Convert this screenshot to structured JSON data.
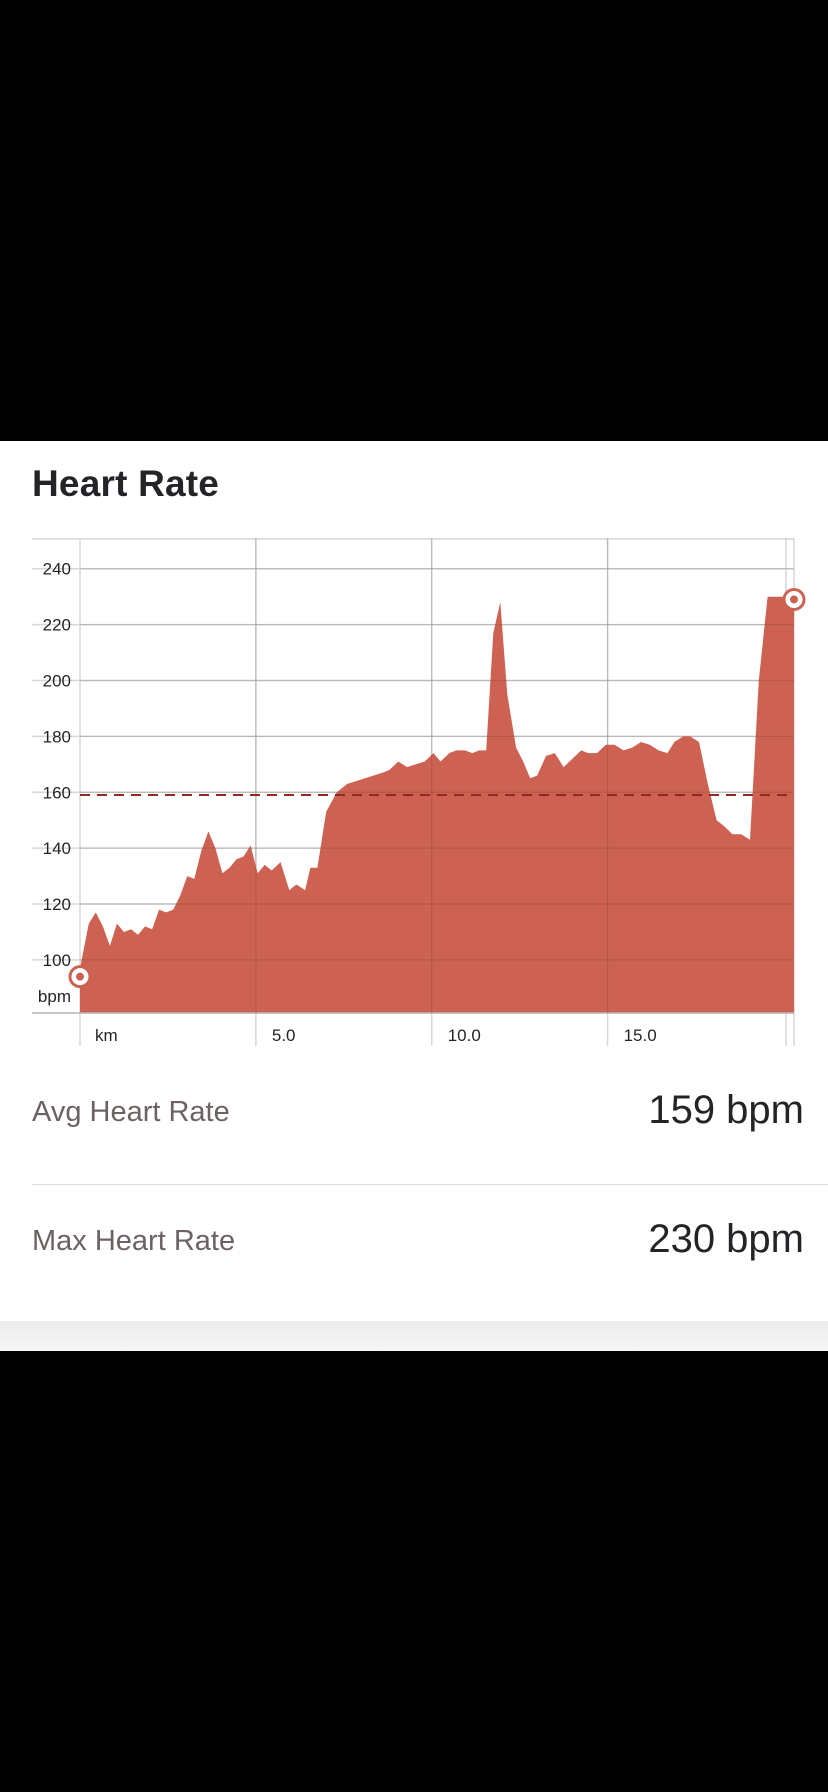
{
  "title": "Heart Rate",
  "colors": {
    "fill": "#ce6252",
    "average_line": "#8e2a22",
    "grid": "#d7d7d7",
    "marker": "#ce6252"
  },
  "stats": {
    "avg_label": "Avg Heart Rate",
    "avg_value": "159 bpm",
    "max_label": "Max Heart Rate",
    "max_value": "230 bpm"
  },
  "chart_data": {
    "type": "area",
    "title": "Heart Rate",
    "xlabel": "km",
    "ylabel": "bpm",
    "xlim": [
      0,
      20.3
    ],
    "ylim": [
      81,
      251
    ],
    "x_ticks": [
      5.0,
      10.0,
      15.0
    ],
    "x_tick_labels": [
      "5.0",
      "10.0",
      "15.0"
    ],
    "y_ticks": [
      100,
      120,
      140,
      160,
      180,
      200,
      220,
      240
    ],
    "y_tick_labels": [
      "100",
      "120",
      "140",
      "160",
      "180",
      "200",
      "220",
      "240"
    ],
    "grid": true,
    "average": 159,
    "markers": [
      {
        "name": "start",
        "x": 0.0,
        "y": 94
      },
      {
        "name": "end",
        "x": 20.3,
        "y": 229
      }
    ],
    "series": [
      {
        "x": [
          0.0,
          0.25,
          0.45,
          0.65,
          0.85,
          1.05,
          1.25,
          1.45,
          1.65,
          1.85,
          2.05,
          2.25,
          2.45,
          2.65,
          2.85,
          3.05,
          3.25,
          3.45,
          3.65,
          3.85,
          4.05,
          4.25,
          4.45,
          4.65,
          4.85,
          5.05,
          5.25,
          5.45,
          5.7,
          5.95,
          6.15,
          6.4,
          6.55,
          6.75,
          7.0,
          7.3,
          7.6,
          7.85,
          8.1,
          8.35,
          8.6,
          8.8,
          9.05,
          9.3,
          9.55,
          9.8,
          10.05,
          10.25,
          10.5,
          10.7,
          10.95,
          11.15,
          11.35,
          11.55,
          11.75,
          11.95,
          12.15,
          12.4,
          12.6,
          12.8,
          13.0,
          13.25,
          13.5,
          13.75,
          14.0,
          14.25,
          14.45,
          14.7,
          14.95,
          15.2,
          15.45,
          15.7,
          15.95,
          16.2,
          16.45,
          16.7,
          16.9,
          17.15,
          17.35,
          17.6,
          17.85,
          18.1,
          18.3,
          18.55,
          18.8,
          19.05,
          19.3,
          19.55,
          19.75,
          20.05,
          20.3
        ],
        "values": [
          97,
          113,
          117,
          112,
          105,
          113,
          110,
          111,
          109,
          112,
          111,
          118,
          117,
          118,
          123,
          130,
          129,
          139,
          146,
          140,
          131,
          133,
          136,
          137,
          141,
          131,
          134,
          132,
          135,
          125,
          127,
          125,
          133,
          133,
          153,
          160,
          163,
          164,
          165,
          166,
          167,
          168,
          171,
          169,
          170,
          171,
          174,
          171,
          174,
          175,
          175,
          174,
          175,
          175,
          217,
          228,
          195,
          176,
          171,
          165,
          166,
          173,
          174,
          169,
          172,
          175,
          174,
          174,
          177,
          177,
          175,
          176,
          178,
          177,
          175,
          174,
          178,
          180,
          180,
          178,
          163,
          150,
          148,
          145,
          145,
          143,
          200,
          230,
          230,
          230,
          230
        ]
      }
    ]
  }
}
